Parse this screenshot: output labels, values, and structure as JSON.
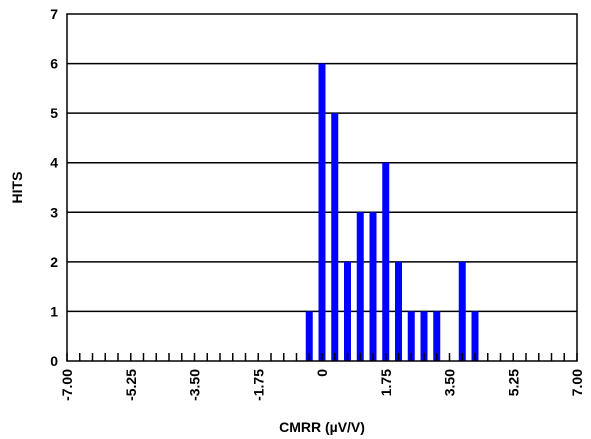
{
  "chart_data": {
    "type": "bar",
    "title": "",
    "xlabel": "CMRR (µV/V)",
    "ylabel": "HITS",
    "xlim": [
      -7.0,
      7.0
    ],
    "ylim": [
      0,
      7
    ],
    "x_tick_labels": [
      "-7.00",
      "-5.25",
      "-3.50",
      "-1.75",
      "0",
      "1.75",
      "3.50",
      "5.25",
      "7.00"
    ],
    "y_tick_labels": [
      "0",
      "1",
      "2",
      "3",
      "4",
      "5",
      "6",
      "7"
    ],
    "grid": "horizontal",
    "colors": {
      "bar": "#0000ff",
      "grid": "#000000"
    },
    "x": [
      -0.35,
      0.0,
      0.35,
      0.7,
      1.05,
      1.4,
      1.75,
      2.1,
      2.45,
      2.8,
      3.15,
      3.85,
      4.2
    ],
    "values": [
      1,
      6,
      5,
      2,
      3,
      3,
      4,
      2,
      1,
      1,
      1,
      2,
      1
    ]
  }
}
